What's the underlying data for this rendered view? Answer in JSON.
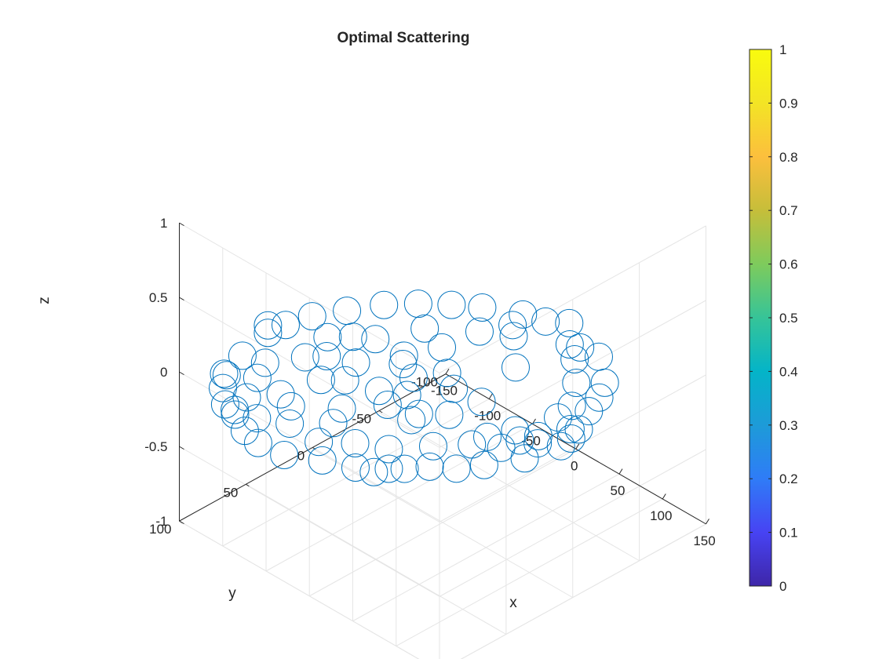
{
  "chart_data": {
    "type": "scatter",
    "title": "Optimal Scattering",
    "xlabel": "x",
    "ylabel": "y",
    "zlabel": "z",
    "xlim": [
      -150,
      150
    ],
    "ylim": [
      -100,
      100
    ],
    "zlim": [
      -1,
      1
    ],
    "x_ticks": [
      "-150",
      "-100",
      "-50",
      "0",
      "50",
      "100",
      "150"
    ],
    "y_ticks": [
      "-100",
      "-50",
      "0",
      "50",
      "100"
    ],
    "z_ticks": [
      "-1",
      "-0.5",
      "0",
      "0.5",
      "1"
    ],
    "grid": true,
    "marker": "open-circle",
    "marker_color": "#0072BD",
    "colorbar": {
      "min": 0,
      "max": 1,
      "ticks": [
        "0",
        "0.1",
        "0.2",
        "0.3",
        "0.4",
        "0.5",
        "0.6",
        "0.7",
        "0.8",
        "0.9",
        "1"
      ],
      "colormap": "parula",
      "colors": [
        "#3E26A8",
        "#4743F3",
        "#2F7CF7",
        "#1D9BD8",
        "#04B4C8",
        "#36C498",
        "#7ECB5C",
        "#C6BE3A",
        "#FCBF3D",
        "#F3E425",
        "#F9FB0E"
      ]
    },
    "points": [
      {
        "x": -140,
        "y": 40,
        "z": 0
      },
      {
        "x": -131,
        "y": 65,
        "z": 0
      },
      {
        "x": -123,
        "y": 84,
        "z": 0
      },
      {
        "x": -140,
        "y": 40,
        "z": 0.05
      },
      {
        "x": -138,
        "y": 28,
        "z": 0
      },
      {
        "x": -132,
        "y": 12,
        "z": 0
      },
      {
        "x": -118,
        "y": -5,
        "z": 0
      },
      {
        "x": -103,
        "y": -23,
        "z": 0
      },
      {
        "x": -85,
        "y": -37,
        "z": 0
      },
      {
        "x": -65,
        "y": -49,
        "z": 0
      },
      {
        "x": -45,
        "y": -59,
        "z": 0
      },
      {
        "x": -15,
        "y": -70,
        "z": 0
      },
      {
        "x": 5,
        "y": -74,
        "z": 0
      },
      {
        "x": 20,
        "y": -82,
        "z": 0
      },
      {
        "x": 51,
        "y": -70,
        "z": 0
      },
      {
        "x": 71,
        "y": -71,
        "z": 0
      },
      {
        "x": 101,
        "y": -56,
        "z": 0
      },
      {
        "x": 113,
        "y": -44,
        "z": 0
      },
      {
        "x": 121,
        "y": -31,
        "z": 0
      },
      {
        "x": 134,
        "y": -15,
        "z": 0
      },
      {
        "x": 139,
        "y": -6,
        "z": 0
      },
      {
        "x": 141,
        "y": 3,
        "z": 0
      },
      {
        "x": 133,
        "y": 25,
        "z": 0
      },
      {
        "x": 117,
        "y": 45,
        "z": 0
      },
      {
        "x": 105,
        "y": 58,
        "z": 0
      },
      {
        "x": 88,
        "y": 67,
        "z": 0
      },
      {
        "x": 67,
        "y": 84,
        "z": 0
      },
      {
        "x": 47,
        "y": 96,
        "z": 0
      },
      {
        "x": 21,
        "y": 104,
        "z": 0
      },
      {
        "x": -6,
        "y": 115,
        "z": 0
      },
      {
        "x": -33,
        "y": 117,
        "z": 0
      },
      {
        "x": -53,
        "y": 114,
        "z": 0
      },
      {
        "x": -75,
        "y": 107,
        "z": 0
      },
      {
        "x": -91,
        "y": 104,
        "z": 0
      },
      {
        "x": -109,
        "y": 94,
        "z": 0
      },
      {
        "x": -120,
        "y": 84,
        "z": 0
      },
      {
        "x": -111,
        "y": 61,
        "z": 0
      },
      {
        "x": -100,
        "y": 74,
        "z": 0
      },
      {
        "x": -94,
        "y": 42,
        "z": 0
      },
      {
        "x": -88,
        "y": 10,
        "z": 0
      },
      {
        "x": -73,
        "y": 3,
        "z": 0
      },
      {
        "x": -62,
        "y": 51,
        "z": 0
      },
      {
        "x": -52,
        "y": 80,
        "z": 0
      },
      {
        "x": -59,
        "y": 101,
        "z": 0
      },
      {
        "x": -35,
        "y": 92,
        "z": 0
      },
      {
        "x": 0,
        "y": 93,
        "z": 0
      },
      {
        "x": 22,
        "y": 80,
        "z": 0
      },
      {
        "x": 47,
        "y": 71,
        "z": 0
      },
      {
        "x": 69,
        "y": 52,
        "z": 0
      },
      {
        "x": 90,
        "y": 25,
        "z": 0
      },
      {
        "x": 99,
        "y": 10,
        "z": 0
      },
      {
        "x": 110,
        "y": -15,
        "z": 0
      },
      {
        "x": 106,
        "y": -28,
        "z": 0
      },
      {
        "x": 129,
        "y": -12,
        "z": 0
      },
      {
        "x": 85,
        "y": -45,
        "z": 0
      },
      {
        "x": 60,
        "y": -60,
        "z": 0
      },
      {
        "x": 42,
        "y": -68,
        "z": 0
      },
      {
        "x": 35,
        "y": -32,
        "z": 0
      },
      {
        "x": 2,
        "y": -52,
        "z": 0
      },
      {
        "x": -22,
        "y": -42,
        "z": 0
      },
      {
        "x": -56,
        "y": -23,
        "z": 0
      },
      {
        "x": -27,
        "y": -17,
        "z": 0
      },
      {
        "x": -32,
        "y": 9,
        "z": 0
      },
      {
        "x": 2,
        "y": -2,
        "z": 0
      },
      {
        "x": 22,
        "y": 6,
        "z": 0
      },
      {
        "x": 51,
        "y": 4,
        "z": 0
      },
      {
        "x": 46,
        "y": 25,
        "z": 0
      },
      {
        "x": 28,
        "y": 36,
        "z": 0
      },
      {
        "x": 2,
        "y": 28,
        "z": 0
      },
      {
        "x": -18,
        "y": 36,
        "z": 0
      },
      {
        "x": -48,
        "y": 42,
        "z": 0
      },
      {
        "x": -21,
        "y": 62,
        "z": 0
      },
      {
        "x": -11,
        "y": 75,
        "z": 0
      },
      {
        "x": -60,
        "y": 26,
        "z": 0
      },
      {
        "x": -40,
        "y": 3,
        "z": 0
      },
      {
        "x": -12,
        "y": 14,
        "z": 0
      },
      {
        "x": 1,
        "y": 42,
        "z": 0
      },
      {
        "x": 125,
        "y": 10,
        "z": 0
      },
      {
        "x": 118,
        "y": 5,
        "z": 0
      },
      {
        "x": 112,
        "y": 15,
        "z": 0
      },
      {
        "x": 109,
        "y": 27,
        "z": 0
      },
      {
        "x": 76,
        "y": 78,
        "z": 0
      },
      {
        "x": 62,
        "y": 92,
        "z": 0
      },
      {
        "x": 89,
        "y": 36,
        "z": 0
      },
      {
        "x": -80,
        "y": 104,
        "z": 0
      },
      {
        "x": -86,
        "y": 91,
        "z": 0
      },
      {
        "x": -70,
        "y": 76,
        "z": 0
      },
      {
        "x": -102,
        "y": 20,
        "z": 0
      },
      {
        "x": -83,
        "y": 33,
        "z": 0
      },
      {
        "x": -10,
        "y": -59,
        "z": 0
      },
      {
        "x": 30,
        "y": 43,
        "z": 0
      }
    ]
  }
}
